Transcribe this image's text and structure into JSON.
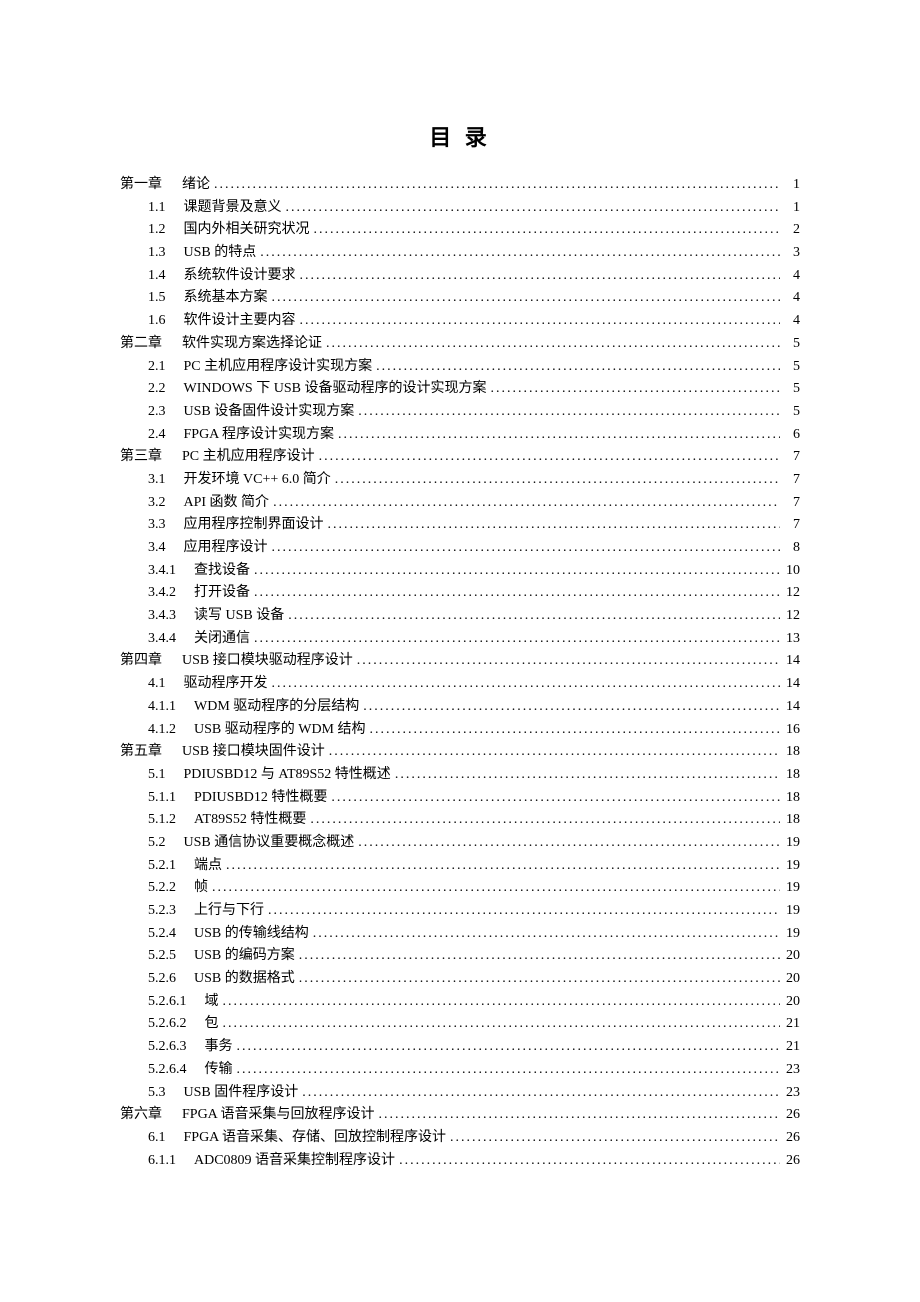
{
  "title": "目 录",
  "entries": [
    {
      "level": 0,
      "label": "第一章",
      "text": "绪论",
      "page": "1"
    },
    {
      "level": 1,
      "label": "1.1",
      "text": "课题背景及意义",
      "page": "1"
    },
    {
      "level": 1,
      "label": "1.2",
      "text": "国内外相关研究状况",
      "page": "2"
    },
    {
      "level": 1,
      "label": "1.3",
      "text": "USB 的特点",
      "page": "3"
    },
    {
      "level": 1,
      "label": "1.4",
      "text": "系统软件设计要求",
      "page": "4"
    },
    {
      "level": 1,
      "label": "1.5",
      "text": "系统基本方案",
      "page": "4"
    },
    {
      "level": 1,
      "label": "1.6",
      "text": "软件设计主要内容",
      "page": "4"
    },
    {
      "level": 0,
      "label": "第二章",
      "text": "软件实现方案选择论证",
      "page": "5"
    },
    {
      "level": 1,
      "label": "2.1",
      "text": "PC 主机应用程序设计实现方案",
      "page": "5"
    },
    {
      "level": 1,
      "label": "2.2",
      "text": "WINDOWS 下 USB 设备驱动程序的设计实现方案",
      "page": "5"
    },
    {
      "level": 1,
      "label": "2.3",
      "text": "USB 设备固件设计实现方案",
      "page": "5"
    },
    {
      "level": 1,
      "label": "2.4",
      "text": "FPGA 程序设计实现方案",
      "page": "6"
    },
    {
      "level": 0,
      "label": "第三章",
      "text": "PC 主机应用程序设计",
      "page": "7"
    },
    {
      "level": 1,
      "label": "3.1",
      "text": "开发环境 VC++ 6.0 简介",
      "page": "7"
    },
    {
      "level": 1,
      "label": "3.2",
      "text": "API 函数  简介",
      "page": "7"
    },
    {
      "level": 1,
      "label": "3.3",
      "text": "应用程序控制界面设计",
      "page": "7"
    },
    {
      "level": 1,
      "label": "3.4",
      "text": "应用程序设计",
      "page": "8"
    },
    {
      "level": 2,
      "label": "3.4.1",
      "text": "查找设备",
      "page": "10"
    },
    {
      "level": 2,
      "label": "3.4.2",
      "text": "打开设备",
      "page": "12"
    },
    {
      "level": 2,
      "label": "3.4.3",
      "text": "读写 USB 设备",
      "page": "12"
    },
    {
      "level": 2,
      "label": "3.4.4",
      "text": "关闭通信",
      "page": "13"
    },
    {
      "level": 0,
      "label": "第四章",
      "text": "USB 接口模块驱动程序设计",
      "page": "14"
    },
    {
      "level": 1,
      "label": "4.1",
      "text": " 驱动程序开发",
      "page": "14"
    },
    {
      "level": 2,
      "label": "4.1.1",
      "text": "WDM 驱动程序的分层结构",
      "page": "14"
    },
    {
      "level": 2,
      "label": "4.1.2",
      "text": "USB 驱动程序的 WDM 结构",
      "page": "16"
    },
    {
      "level": 0,
      "label": "第五章",
      "text": " USB 接口模块固件设计",
      "page": "18"
    },
    {
      "level": 1,
      "label": "5.1",
      "text": " PDIUSBD12 与 AT89S52 特性概述",
      "page": "18"
    },
    {
      "level": 2,
      "label": "5.1.1",
      "text": "PDIUSBD12 特性概要",
      "page": "18"
    },
    {
      "level": 2,
      "label": "5.1.2",
      "text": "AT89S52 特性概要",
      "page": "18"
    },
    {
      "level": 1,
      "label": "5.2",
      "text": " USB 通信协议重要概念概述",
      "page": "19"
    },
    {
      "level": 2,
      "label": "5.2.1",
      "text": "端点",
      "page": "19"
    },
    {
      "level": 2,
      "label": "5.2.2",
      "text": "帧",
      "page": "19"
    },
    {
      "level": 2,
      "label": "5.2.3",
      "text": "上行与下行",
      "page": "19"
    },
    {
      "level": 2,
      "label": "5.2.4",
      "text": "USB 的传输线结构",
      "page": "19"
    },
    {
      "level": 2,
      "label": "5.2.5",
      "text": "USB 的编码方案",
      "page": "20"
    },
    {
      "level": 2,
      "label": "5.2.6",
      "text": "USB 的数据格式",
      "page": "20"
    },
    {
      "level": 3,
      "label": "5.2.6.1",
      "text": "域",
      "page": "20"
    },
    {
      "level": 3,
      "label": "5.2.6.2",
      "text": "包",
      "page": "21"
    },
    {
      "level": 3,
      "label": "5.2.6.3",
      "text": "事务",
      "page": "21"
    },
    {
      "level": 3,
      "label": "5.2.6.4",
      "text": "传输",
      "page": "23"
    },
    {
      "level": 1,
      "label": "5.3",
      "text": "  USB 固件程序设计",
      "page": "23"
    },
    {
      "level": 0,
      "label": "第六章",
      "text": "FPGA 语音采集与回放程序设计",
      "page": "26"
    },
    {
      "level": 1,
      "label": "6.1",
      "text": " FPGA 语音采集、存储、回放控制程序设计",
      "page": "26"
    },
    {
      "level": 2,
      "label": "6.1.1",
      "text": " ADC0809 语音采集控制程序设计",
      "page": "26"
    }
  ]
}
